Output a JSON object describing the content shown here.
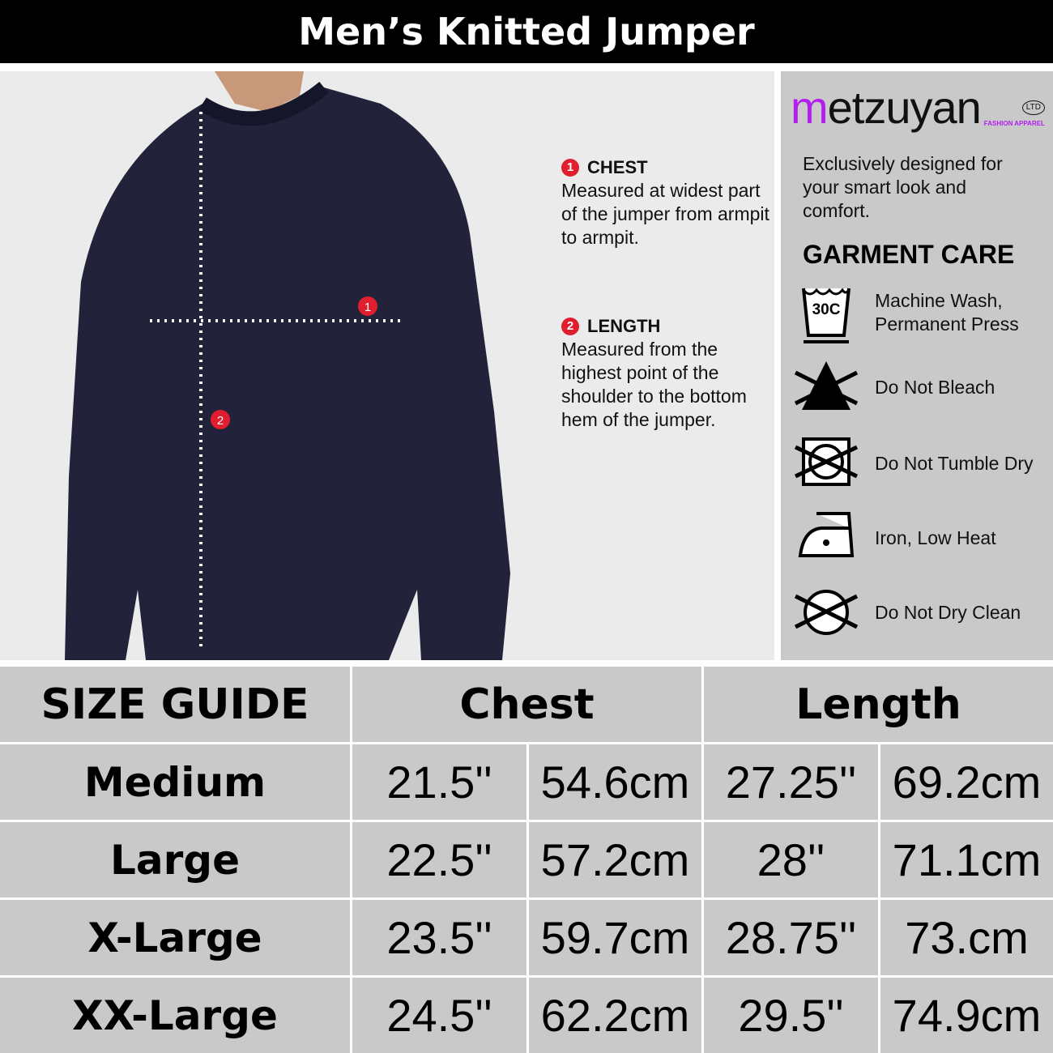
{
  "title": "Men’s Knitted Jumper",
  "notes": [
    {
      "num": "1",
      "heading": "CHEST",
      "text": "Measured at widest part of the jumper from armpit to armpit."
    },
    {
      "num": "2",
      "heading": "LENGTH",
      "text": "Measured from the highest point of the shoulder to the bottom hem of the jumper."
    }
  ],
  "brand": {
    "name_accent": "m",
    "name_rest": "etzuyan",
    "ltd": "LTD",
    "tagline": "FASHION APPAREL",
    "accent_color": "#b21ef0"
  },
  "intro": "Exclusively designed for your smart look and comfort.",
  "care_heading": "GARMENT CARE",
  "care": [
    {
      "icon": "wash-30c-icon",
      "label": "Machine Wash, Permanent Press",
      "temp": "30C"
    },
    {
      "icon": "do-not-bleach-icon",
      "label": "Do Not Bleach"
    },
    {
      "icon": "do-not-tumble-dry-icon",
      "label": "Do Not Tumble Dry"
    },
    {
      "icon": "iron-low-heat-icon",
      "label": "Iron, Low Heat"
    },
    {
      "icon": "do-not-dry-clean-icon",
      "label": "Do Not Dry Clean"
    }
  ],
  "table": {
    "headers": [
      "SIZE GUIDE",
      "Chest",
      "Length"
    ],
    "rows": [
      {
        "size": "Medium",
        "chest_in": "21.5''",
        "chest_cm": "54.6cm",
        "length_in": "27.25''",
        "length_cm": "69.2cm"
      },
      {
        "size": "Large",
        "chest_in": "22.5''",
        "chest_cm": "57.2cm",
        "length_in": "28''",
        "length_cm": "71.1cm"
      },
      {
        "size": "X-Large",
        "chest_in": "23.5''",
        "chest_cm": "59.7cm",
        "length_in": "28.75''",
        "length_cm": "73.cm"
      },
      {
        "size": "XX-Large",
        "chest_in": "24.5''",
        "chest_cm": "62.2cm",
        "length_in": "29.5''",
        "length_cm": "74.9cm"
      }
    ]
  }
}
